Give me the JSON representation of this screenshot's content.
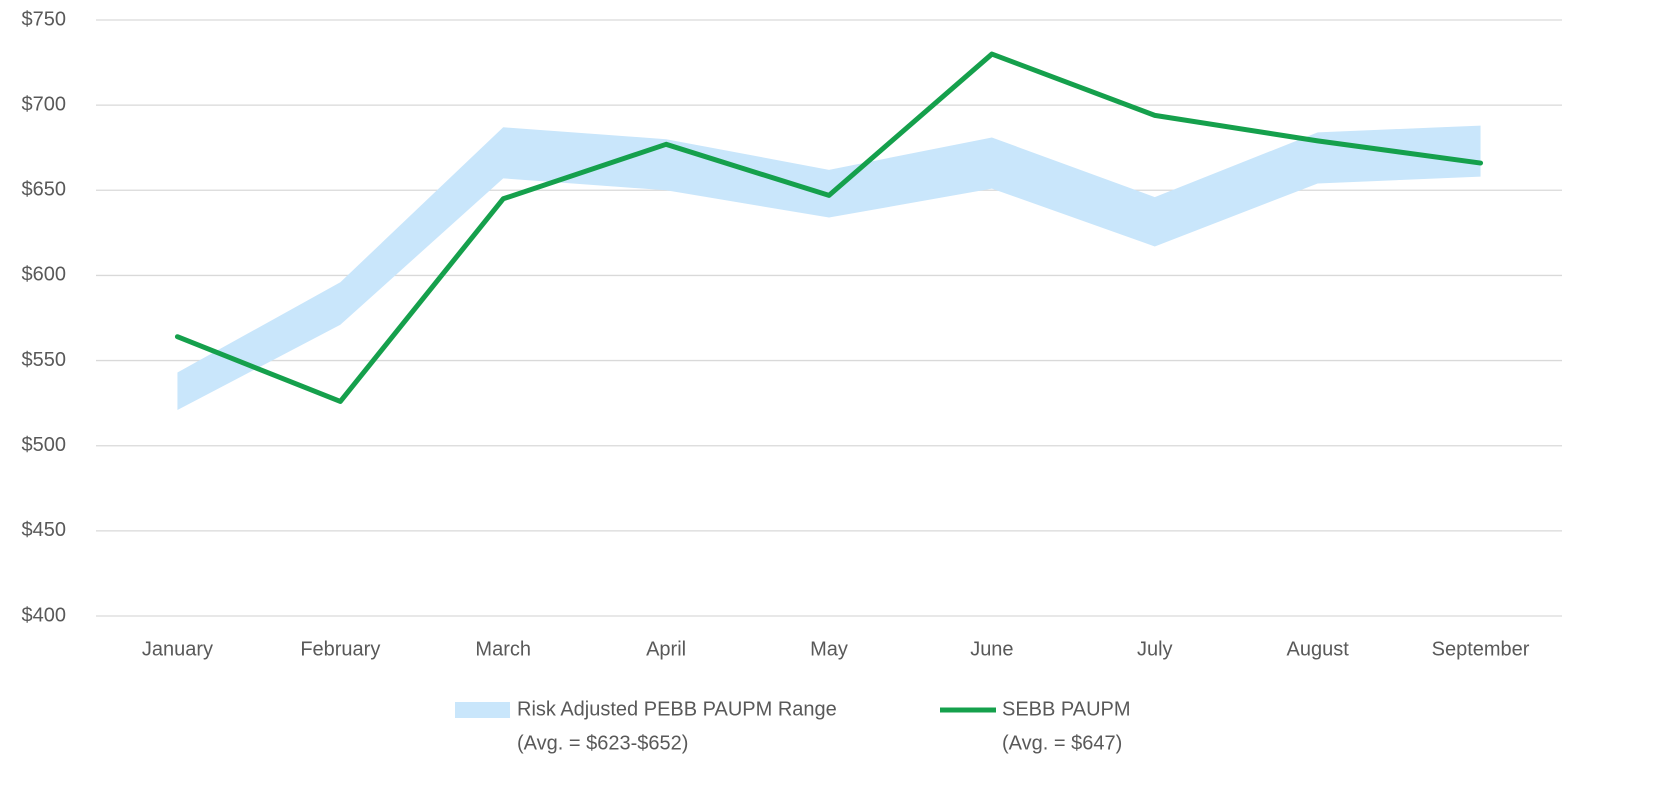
{
  "chart_data": {
    "type": "line",
    "categories": [
      "January",
      "February",
      "March",
      "April",
      "May",
      "June",
      "July",
      "August",
      "September"
    ],
    "series": [
      {
        "name": "Risk Adjusted PEBB PAUPM Range",
        "note": "(Avg. = $623-$652)",
        "type": "range",
        "color": "#c9e6fb",
        "lower": [
          521,
          571,
          657,
          650,
          634,
          651,
          617,
          654,
          658
        ],
        "upper": [
          543,
          596,
          687,
          680,
          662,
          681,
          646,
          684,
          688
        ]
      },
      {
        "name": "SEBB PAUPM",
        "note": "(Avg. = $647)",
        "type": "line",
        "color": "#15a04c",
        "values": [
          564,
          526,
          645,
          677,
          647,
          730,
          694,
          679,
          666
        ]
      }
    ],
    "ylim": [
      400,
      750
    ],
    "yticks": [
      {
        "value": 400,
        "label": "$400"
      },
      {
        "value": 450,
        "label": "$450"
      },
      {
        "value": 500,
        "label": "$500"
      },
      {
        "value": 550,
        "label": "$550"
      },
      {
        "value": 600,
        "label": "$600"
      },
      {
        "value": 650,
        "label": "$650"
      },
      {
        "value": 700,
        "label": "$700"
      },
      {
        "value": 750,
        "label": "$750"
      }
    ],
    "grid": true,
    "legend": "bottom"
  }
}
